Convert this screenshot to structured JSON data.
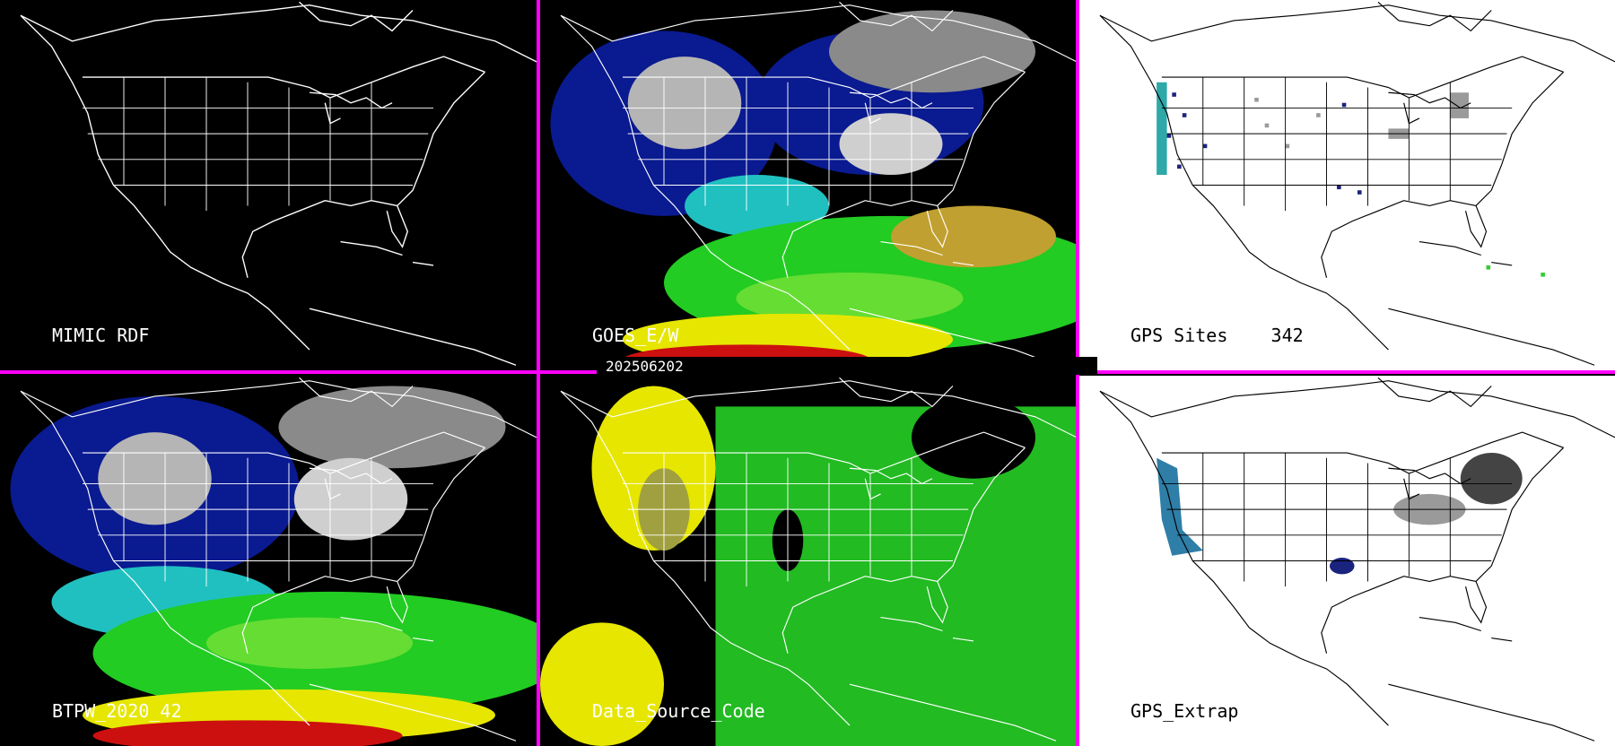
{
  "panels": {
    "p1": {
      "label": "MIMIC RDF"
    },
    "p2": {
      "label": "GOES_E/W"
    },
    "p3": {
      "label": "GPS Sites    342"
    },
    "p4": {
      "label": "BTPW_2020_42"
    },
    "p5": {
      "label": "Data_Source_Code"
    },
    "p6": {
      "label": "GPS_Extrap"
    }
  },
  "timestamp": "202506202",
  "colors": {
    "divider": "#ff00ff",
    "dark_bg": "#000000",
    "light_bg": "#ffffff",
    "map_line_on_dark": "#ffffff",
    "map_line_on_light": "#000000"
  }
}
